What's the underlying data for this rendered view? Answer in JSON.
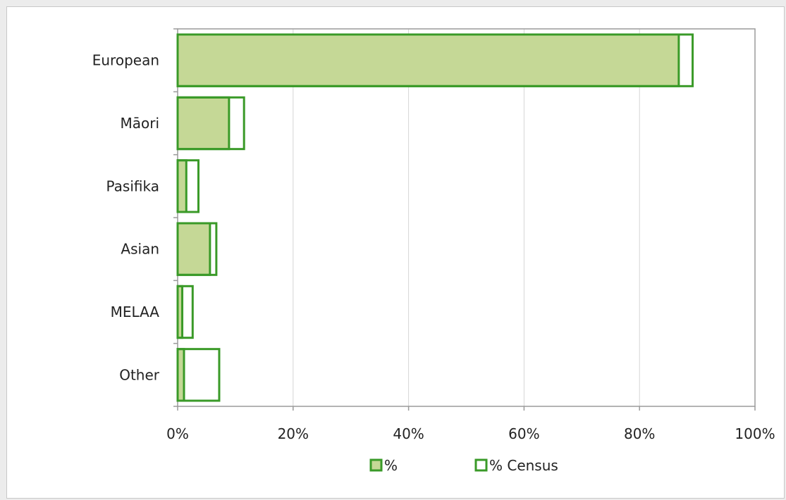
{
  "chart_data": {
    "type": "bar",
    "orientation": "horizontal",
    "categories": [
      "European",
      "Māori",
      "Pasifika",
      "Asian",
      "MELAA",
      "Other"
    ],
    "series": [
      {
        "name": "%",
        "values": [
          86.8,
          8.9,
          1.5,
          5.6,
          0.8,
          1.1
        ],
        "style": "filled"
      },
      {
        "name": "% Census",
        "values": [
          89.2,
          11.5,
          3.6,
          6.7,
          2.6,
          7.2
        ],
        "style": "outline"
      }
    ],
    "xlim": [
      0,
      100
    ],
    "x_ticks": [
      "0%",
      "20%",
      "40%",
      "60%",
      "80%",
      "100%"
    ],
    "grid": "vertical",
    "legend_position": "bottom",
    "title": "",
    "xlabel": "",
    "ylabel": ""
  },
  "colors": {
    "fill": "#c5d896",
    "stroke": "#3a9a28",
    "grid": "#d6d6d6",
    "axis": "#9a9a9a",
    "text": "#222222"
  }
}
